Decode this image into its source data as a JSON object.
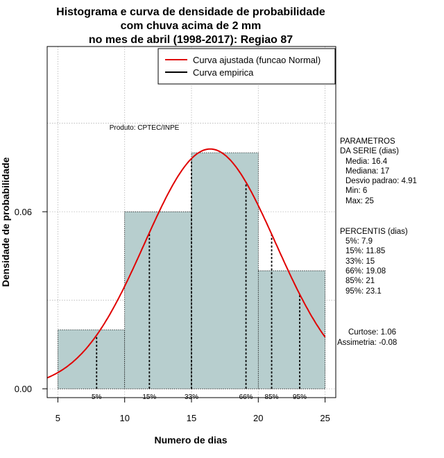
{
  "title_lines": [
    "Histograma e curva de densidade de probabilidade",
    "com chuva acima de 2 mm",
    "no mes de abril (1998-2017): Regiao 87"
  ],
  "producer_note": "Produto: CPTEC/INPE",
  "legend": [
    {
      "label": "Curva ajustada (funcao Normal)",
      "color": "#e00000"
    },
    {
      "label": "Curva empirica",
      "color": "#000000"
    }
  ],
  "parameters": {
    "header": [
      "PARAMETROS",
      "DA SERIE (dias)"
    ],
    "lines": [
      "Media: 16.4",
      "Mediana: 17",
      "Desvio padrao: 4.91",
      "Min: 6",
      "Max: 25"
    ]
  },
  "percentiles": {
    "header": "PERCENTIS (dias)",
    "lines": [
      "5%: 7.9",
      "15%: 11.85",
      "33%: 15",
      "66%: 19.08",
      "85%: 21",
      "95%: 23.1"
    ]
  },
  "shape": {
    "lines": [
      "Curtose: 1.06",
      "Assimetria: -0.08"
    ]
  },
  "chart_data": {
    "type": "bar",
    "xlabel": "Numero de dias",
    "ylabel": "Densidade de probabilidade",
    "xlim": [
      4.2,
      25.8
    ],
    "ylim": [
      -0.003,
      0.116
    ],
    "x_ticks": [
      5,
      10,
      15,
      20,
      25
    ],
    "y_ticks": [
      0.0,
      0.06
    ],
    "y_tick_labels": [
      "0.00",
      "0.06"
    ],
    "grid": true,
    "legend_position": "top-right",
    "bar_color": "#b7cece",
    "bins": [
      {
        "from": 5,
        "to": 10,
        "density": 0.02
      },
      {
        "from": 10,
        "to": 15,
        "density": 0.06
      },
      {
        "from": 15,
        "to": 20,
        "density": 0.08
      },
      {
        "from": 20,
        "to": 25,
        "density": 0.04
      }
    ],
    "normal_fit": {
      "mean": 16.4,
      "sd": 4.91,
      "color": "#e00000"
    },
    "percentile_lines": [
      {
        "label": "5%",
        "x": 7.9
      },
      {
        "label": "15%",
        "x": 11.85
      },
      {
        "label": "33%",
        "x": 15
      },
      {
        "label": "66%",
        "x": 19.08
      },
      {
        "label": "85%",
        "x": 21
      },
      {
        "label": "95%",
        "x": 23.1
      }
    ]
  }
}
